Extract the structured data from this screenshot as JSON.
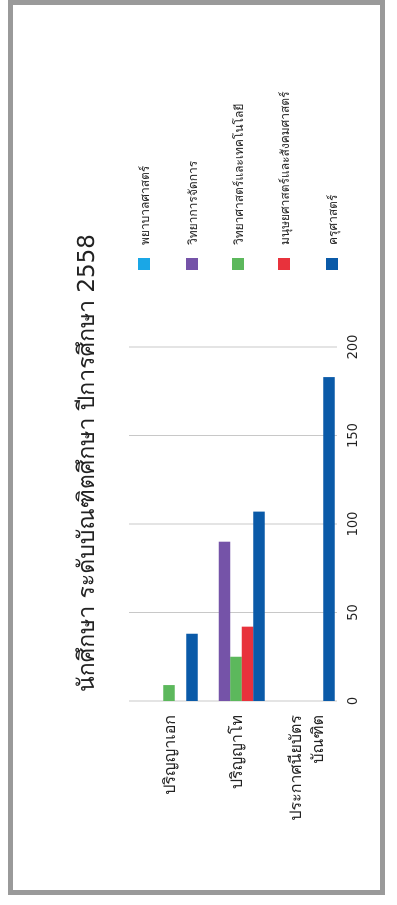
{
  "chart_data": {
    "type": "bar",
    "orientation": "horizontal",
    "title": "นักศึกษา ระดับบัณฑิตศึกษา ปีการศึกษา 2558",
    "categories": [
      "ปริญญาเอก",
      "ปริญญาโท",
      "ประกาศนียบัตรบัณฑิต"
    ],
    "category_lines": [
      [
        "ปริญญาเอก"
      ],
      [
        "ปริญญาโท"
      ],
      [
        "ประกาศนียบัตร",
        "บัณฑิต"
      ]
    ],
    "series": [
      {
        "name": "พยาบาลศาสตร์",
        "color": "#1aa7e6",
        "values": [
          0,
          0,
          0
        ]
      },
      {
        "name": "วิทยาการจัดการ",
        "color": "#7553a8",
        "values": [
          0,
          90,
          0
        ]
      },
      {
        "name": "วิทยาศาสตร์และเทคโนโลยี",
        "color": "#5cb85c",
        "values": [
          9,
          25,
          0
        ]
      },
      {
        "name": "มนุษยศาสตร์และสังคมศาสตร์",
        "color": "#e8323c",
        "values": [
          0,
          42,
          0
        ]
      },
      {
        "name": "ครุศาสตร์",
        "color": "#0a5aa8",
        "values": [
          38,
          107,
          183
        ]
      }
    ],
    "ticks": [
      0,
      50,
      100,
      150,
      200
    ],
    "xlim": [
      0,
      200
    ],
    "grid": true,
    "legend_position": "top"
  }
}
